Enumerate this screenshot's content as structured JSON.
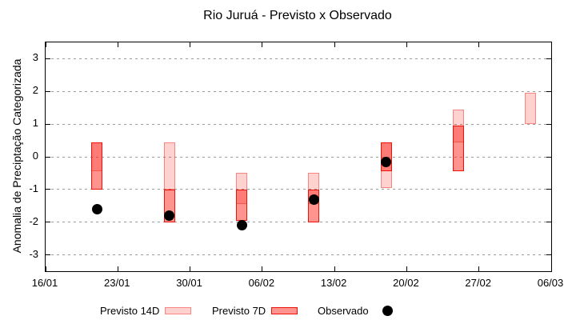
{
  "chart_data": {
    "type": "bar",
    "title": "Rio Juruá - Previsto x Observado",
    "ylabel": "Anomalia de Preciptação Categorizada",
    "xlabel": "",
    "ylim": [
      -3.5,
      3.5
    ],
    "yticks": [
      -3,
      -2,
      -1,
      0,
      1,
      2,
      3
    ],
    "xlim_days": [
      0,
      49
    ],
    "xticks": [
      {
        "day": 0,
        "label": "16/01"
      },
      {
        "day": 7,
        "label": "23/01"
      },
      {
        "day": 14,
        "label": "30/01"
      },
      {
        "day": 21,
        "label": "06/02"
      },
      {
        "day": 28,
        "label": "13/02"
      },
      {
        "day": 35,
        "label": "20/02"
      },
      {
        "day": 42,
        "label": "27/02"
      },
      {
        "day": 49,
        "label": "06/03"
      }
    ],
    "grid": "dashed-horizontal",
    "legend_position": "below",
    "groups": [
      {
        "date": "21/01",
        "day": 5,
        "previsto_14d": [
          0.45,
          -0.45
        ],
        "previsto_7d": [
          0.45,
          -1.0
        ],
        "observado": -1.6
      },
      {
        "date": "28/01",
        "day": 12,
        "previsto_14d": [
          0.45,
          -1.0
        ],
        "previsto_7d": [
          -1.0,
          -2.0
        ],
        "observado": -1.8
      },
      {
        "date": "04/02",
        "day": 19,
        "previsto_14d": [
          -0.5,
          -1.45
        ],
        "previsto_7d": [
          -1.0,
          -1.95
        ],
        "observado": -2.1
      },
      {
        "date": "11/02",
        "day": 26,
        "previsto_14d": [
          -0.5,
          -1.45
        ],
        "previsto_7d": [
          -1.0,
          -2.0
        ],
        "observado": -1.3
      },
      {
        "date": "18/02",
        "day": 33,
        "previsto_14d": [
          0.45,
          -0.95
        ],
        "previsto_7d": [
          0.45,
          -0.45
        ],
        "observado": -0.15
      },
      {
        "date": "25/02",
        "day": 40,
        "previsto_14d": [
          1.45,
          0.45
        ],
        "previsto_7d": [
          0.95,
          -0.45
        ],
        "observado": null
      },
      {
        "date": "04/03",
        "day": 47,
        "previsto_14d": [
          1.95,
          1.0
        ],
        "previsto_7d": null,
        "observado": null
      }
    ],
    "legend": [
      {
        "label": "Previsto 14D",
        "swatch": "previsto_14d"
      },
      {
        "label": "Previsto 7D",
        "swatch": "previsto_7d"
      },
      {
        "label": "Observado",
        "swatch": "observado"
      }
    ],
    "colors": {
      "previsto_14d_fill": "rgba(255,32,21,0.20)",
      "previsto_14d_border": "rgba(238,18,10,0.40)",
      "previsto_7d_fill": "rgba(255,32,21,0.48)",
      "previsto_7d_border": "#ee1208",
      "observado": "#000000",
      "grid": "#9a9a9a",
      "axis": "#000000"
    }
  }
}
